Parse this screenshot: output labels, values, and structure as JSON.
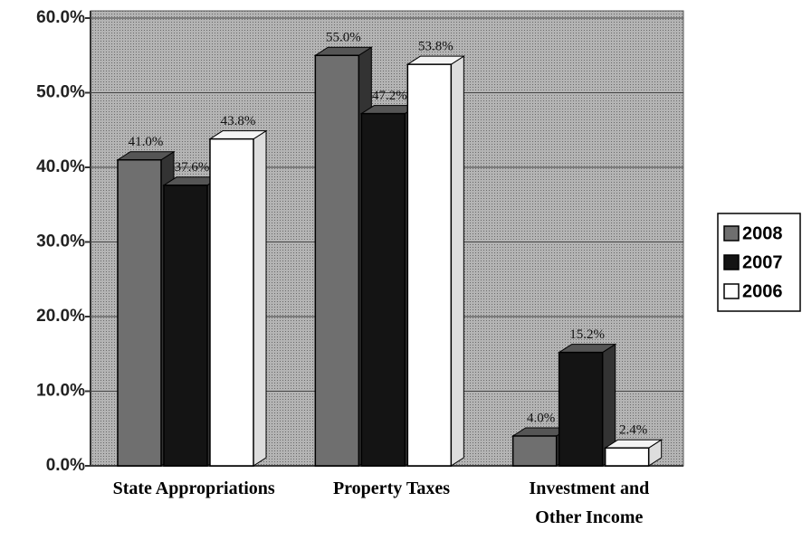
{
  "chart_data": {
    "type": "bar3d",
    "categories": [
      "State Appropriations",
      "Property Taxes",
      "Investment and Other Income"
    ],
    "series": [
      {
        "name": "2008",
        "color": "#6f6f6f",
        "values": [
          41.0,
          55.0,
          4.0
        ],
        "value_labels": [
          "41.0%",
          "55.0%",
          "4.0%"
        ]
      },
      {
        "name": "2007",
        "color": "#141414",
        "values": [
          37.6,
          47.2,
          15.2
        ],
        "value_labels": [
          "37.6%",
          "47.2%",
          "15.2%"
        ]
      },
      {
        "name": "2006",
        "color": "#ffffff",
        "values": [
          43.8,
          53.8,
          2.4
        ],
        "value_labels": [
          "43.8%",
          "53.8%",
          "2.4%"
        ]
      }
    ],
    "ylim": [
      0,
      60
    ],
    "yticks": [
      {
        "value": 0,
        "label": "0.0%"
      },
      {
        "value": 10,
        "label": "10.0%"
      },
      {
        "value": 20,
        "label": "20.0%"
      },
      {
        "value": 30,
        "label": "30.0%"
      },
      {
        "value": 40,
        "label": "40.0%"
      },
      {
        "value": 50,
        "label": "50.0%"
      },
      {
        "value": 60,
        "label": "60.0%"
      }
    ],
    "grid": true,
    "legend": "right"
  }
}
